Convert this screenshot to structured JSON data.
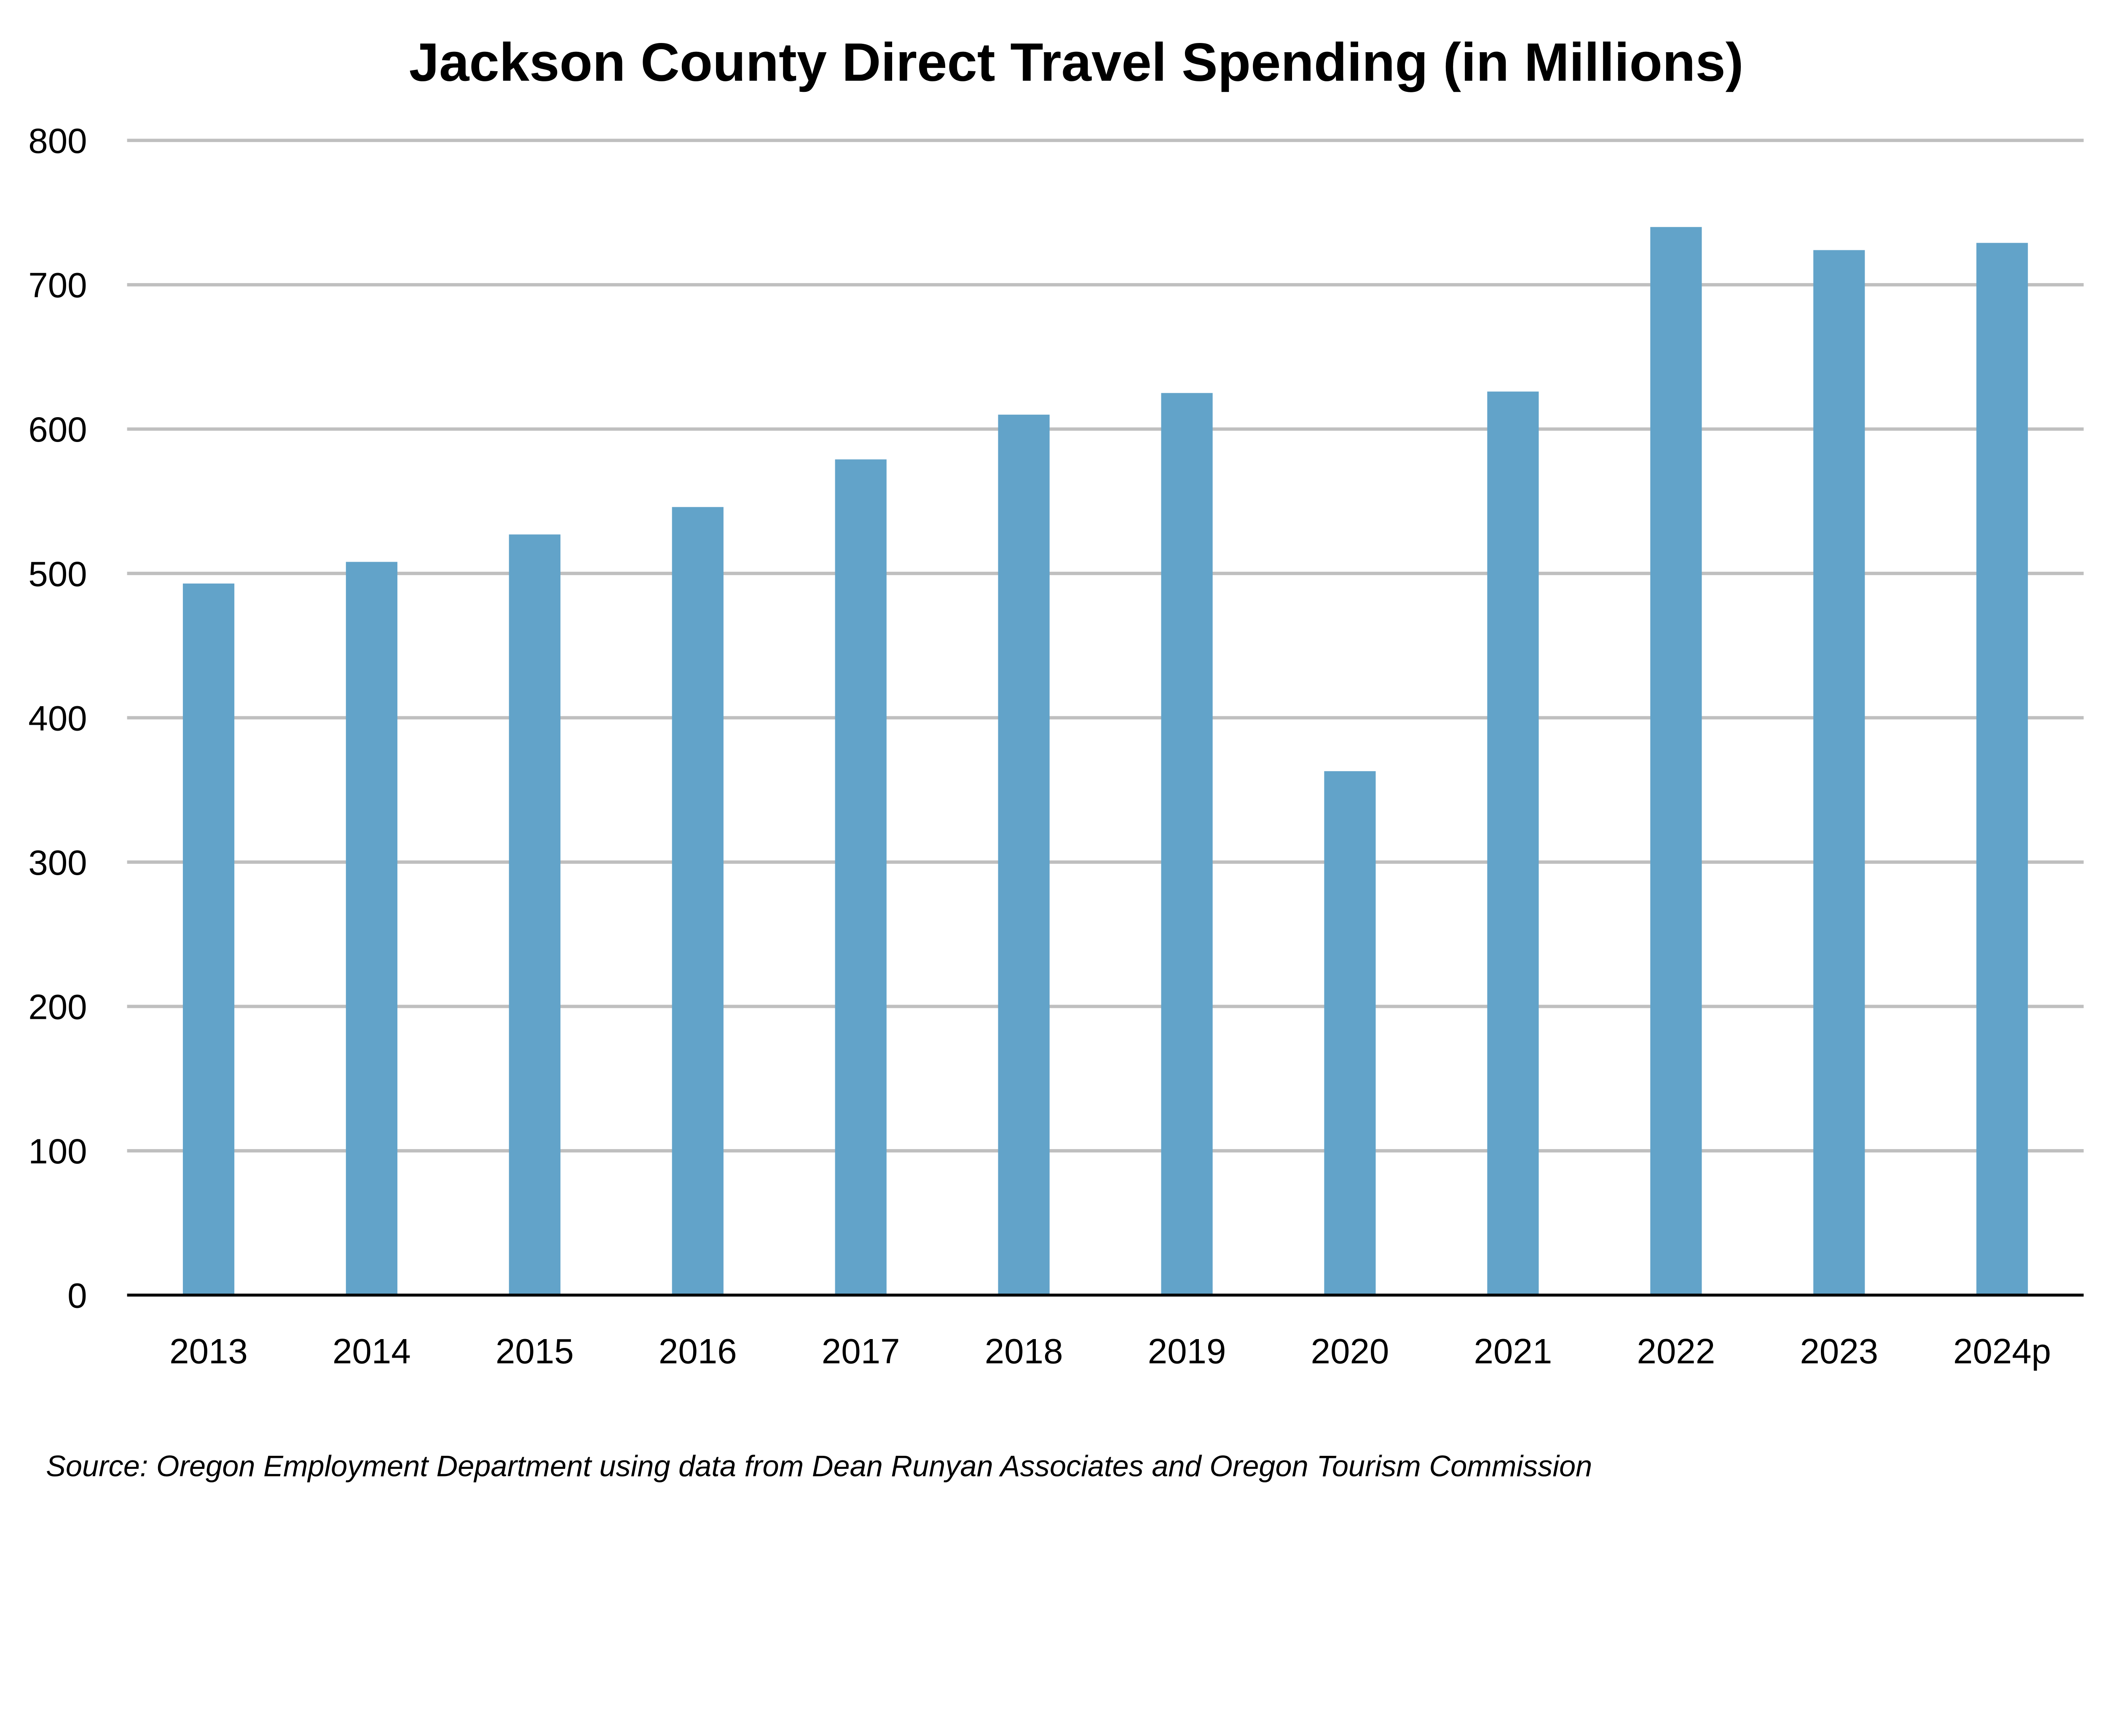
{
  "chart_data": {
    "type": "bar",
    "title": "Jackson County Direct Travel Spending (in Millions)",
    "xlabel": "",
    "ylabel": "",
    "categories": [
      "2013",
      "2014",
      "2015",
      "2016",
      "2017",
      "2018",
      "2019",
      "2020",
      "2021",
      "2022",
      "2023",
      "2024p"
    ],
    "values": [
      493,
      508,
      527,
      546,
      579,
      610,
      625,
      363,
      626,
      740,
      724,
      729
    ],
    "ylim": [
      0,
      800
    ],
    "yticks": [
      "0",
      "100",
      "200",
      "300",
      "400",
      "500",
      "600",
      "700",
      "800"
    ],
    "grid": true,
    "legend": "none",
    "bar_color": "#62A3C9",
    "source": "Source: Oregon Employment Department using data from Dean Runyan Associates and Oregon Tourism Commission"
  }
}
